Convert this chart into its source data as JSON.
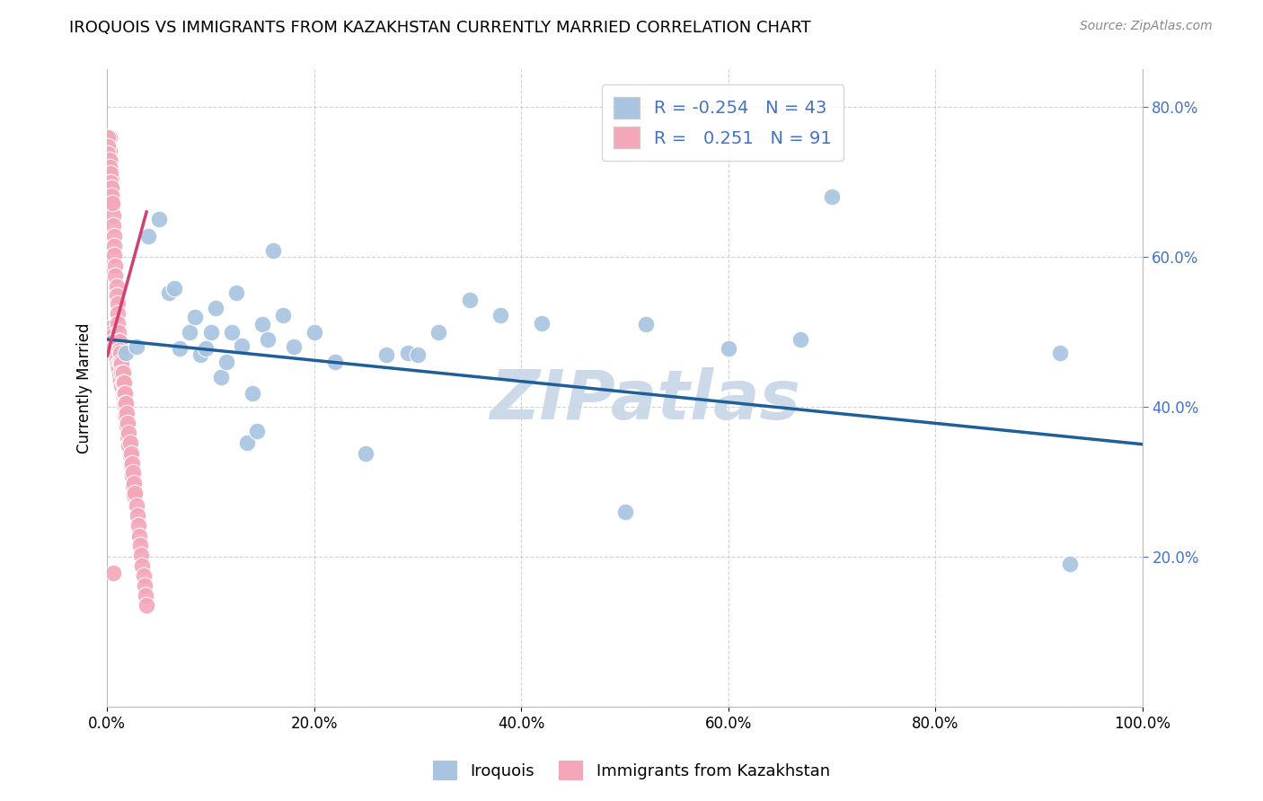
{
  "title": "IROQUOIS VS IMMIGRANTS FROM KAZAKHSTAN CURRENTLY MARRIED CORRELATION CHART",
  "source": "Source: ZipAtlas.com",
  "ylabel": "Currently Married",
  "watermark": "ZIPatlas",
  "legend_blue_r": "-0.254",
  "legend_blue_n": "43",
  "legend_pink_r": "0.251",
  "legend_pink_n": "91",
  "blue_color": "#a8c4e0",
  "pink_color": "#f4a7b9",
  "blue_line_color": "#1f5f99",
  "pink_line_color": "#d04070",
  "xlim": [
    0.0,
    1.0
  ],
  "ylim": [
    0.0,
    0.85
  ],
  "blue_scatter_x": [
    0.018,
    0.028,
    0.04,
    0.05,
    0.06,
    0.065,
    0.07,
    0.08,
    0.085,
    0.09,
    0.095,
    0.1,
    0.105,
    0.11,
    0.115,
    0.12,
    0.125,
    0.13,
    0.135,
    0.14,
    0.145,
    0.15,
    0.155,
    0.16,
    0.17,
    0.18,
    0.2,
    0.22,
    0.25,
    0.27,
    0.29,
    0.32,
    0.35,
    0.38,
    0.42,
    0.5,
    0.52,
    0.6,
    0.67,
    0.7,
    0.92,
    0.93,
    0.3
  ],
  "blue_scatter_y": [
    0.472,
    0.48,
    0.628,
    0.65,
    0.552,
    0.558,
    0.478,
    0.5,
    0.52,
    0.47,
    0.478,
    0.5,
    0.532,
    0.44,
    0.46,
    0.5,
    0.552,
    0.482,
    0.352,
    0.418,
    0.368,
    0.51,
    0.49,
    0.608,
    0.522,
    0.48,
    0.5,
    0.46,
    0.338,
    0.47,
    0.472,
    0.5,
    0.542,
    0.522,
    0.512,
    0.26,
    0.51,
    0.478,
    0.49,
    0.68,
    0.472,
    0.19,
    0.47
  ],
  "pink_scatter_x": [
    0.002,
    0.002,
    0.003,
    0.003,
    0.003,
    0.004,
    0.004,
    0.004,
    0.005,
    0.005,
    0.005,
    0.006,
    0.006,
    0.006,
    0.007,
    0.007,
    0.007,
    0.007,
    0.008,
    0.008,
    0.008,
    0.009,
    0.009,
    0.009,
    0.01,
    0.01,
    0.01,
    0.01,
    0.011,
    0.011,
    0.011,
    0.012,
    0.012,
    0.012,
    0.012,
    0.013,
    0.013,
    0.013,
    0.014,
    0.014,
    0.014,
    0.015,
    0.015,
    0.015,
    0.016,
    0.016,
    0.016,
    0.017,
    0.017,
    0.017,
    0.018,
    0.018,
    0.019,
    0.019,
    0.02,
    0.02,
    0.021,
    0.021,
    0.022,
    0.022,
    0.023,
    0.023,
    0.024,
    0.024,
    0.025,
    0.025,
    0.026,
    0.026,
    0.027,
    0.028,
    0.029,
    0.03,
    0.031,
    0.032,
    0.033,
    0.034,
    0.035,
    0.036,
    0.037,
    0.038,
    0.001,
    0.001,
    0.001,
    0.002,
    0.002,
    0.003,
    0.003,
    0.004,
    0.004,
    0.005,
    0.006
  ],
  "pink_scatter_y": [
    0.76,
    0.742,
    0.728,
    0.718,
    0.505,
    0.705,
    0.692,
    0.498,
    0.68,
    0.668,
    0.495,
    0.655,
    0.642,
    0.488,
    0.628,
    0.615,
    0.602,
    0.48,
    0.588,
    0.575,
    0.472,
    0.56,
    0.548,
    0.462,
    0.538,
    0.525,
    0.512,
    0.458,
    0.5,
    0.488,
    0.452,
    0.488,
    0.475,
    0.46,
    0.442,
    0.472,
    0.46,
    0.435,
    0.458,
    0.445,
    0.428,
    0.445,
    0.432,
    0.415,
    0.432,
    0.418,
    0.402,
    0.418,
    0.405,
    0.388,
    0.405,
    0.388,
    0.392,
    0.375,
    0.378,
    0.36,
    0.365,
    0.348,
    0.352,
    0.335,
    0.338,
    0.322,
    0.325,
    0.308,
    0.312,
    0.295,
    0.298,
    0.282,
    0.285,
    0.268,
    0.255,
    0.242,
    0.228,
    0.215,
    0.202,
    0.188,
    0.175,
    0.162,
    0.148,
    0.135,
    0.76,
    0.748,
    0.738,
    0.73,
    0.72,
    0.712,
    0.7,
    0.692,
    0.682,
    0.672,
    0.178
  ],
  "blue_trendline_x": [
    0.0,
    1.0
  ],
  "blue_trendline_y": [
    0.49,
    0.35
  ],
  "pink_trendline_x": [
    0.0,
    0.038
  ],
  "pink_trendline_y": [
    0.468,
    0.66
  ],
  "grid_color": "#c8c8c8",
  "watermark_color": "#ccd9e8",
  "bg_color": "#ffffff",
  "legend_fontsize": 14,
  "title_fontsize": 13,
  "axis_label_fontsize": 12,
  "tick_fontsize": 12,
  "right_tick_color": "#4472c4",
  "tick_label_color": "#4472c4"
}
